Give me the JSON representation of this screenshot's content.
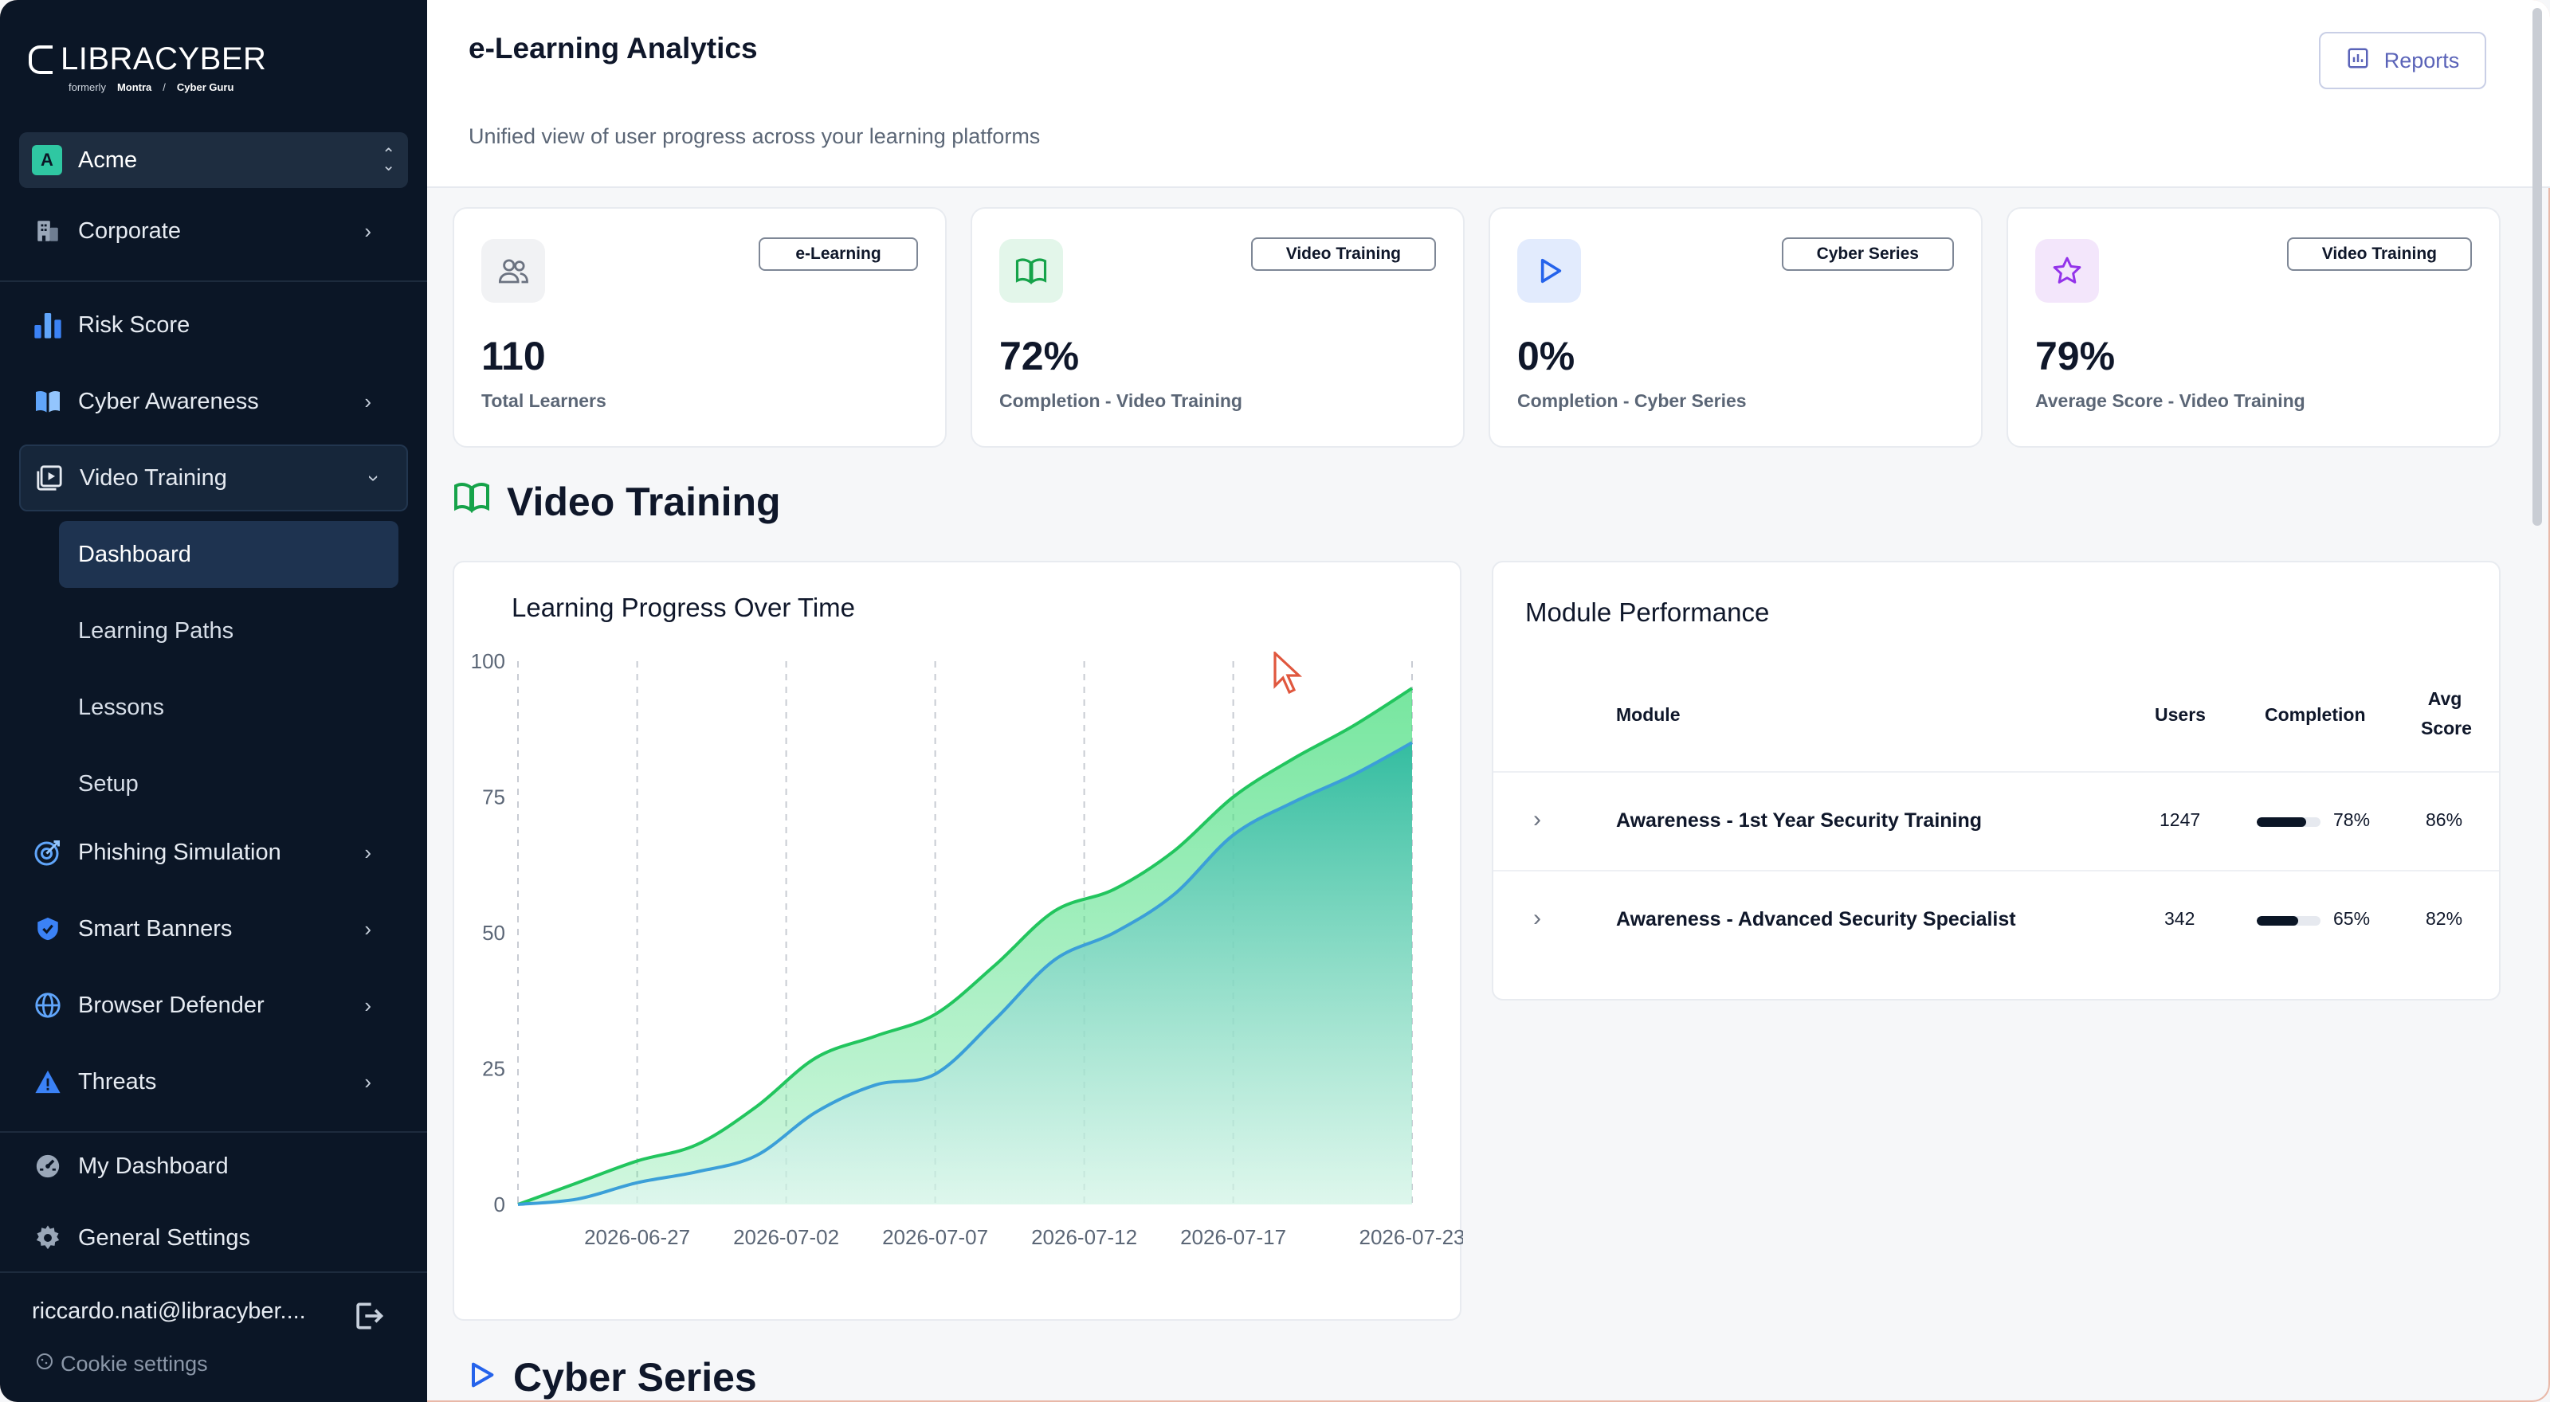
{
  "brand": {
    "name": "LIBRACYBER",
    "formerly": "formerly",
    "old_brand_1": "Montra",
    "separator": "/",
    "old_brand_2": "Cyber Guru"
  },
  "org": {
    "initial": "A",
    "name": "Acme"
  },
  "sidebar": {
    "items": [
      {
        "label": "Corporate",
        "icon": "building-icon"
      },
      {
        "label": "Risk Score",
        "icon": "bar-chart-icon"
      },
      {
        "label": "Cyber Awareness",
        "icon": "book-icon"
      },
      {
        "label": "Video Training",
        "icon": "video-icon"
      },
      {
        "label": "Phishing Simulation",
        "icon": "target-icon"
      },
      {
        "label": "Smart Banners",
        "icon": "shield-icon"
      },
      {
        "label": "Browser Defender",
        "icon": "globe-icon"
      },
      {
        "label": "Threats",
        "icon": "alert-icon"
      },
      {
        "label": "My Dashboard",
        "icon": "gauge-icon"
      },
      {
        "label": "General Settings",
        "icon": "gear-icon"
      }
    ],
    "sub_items": [
      {
        "label": "Dashboard"
      },
      {
        "label": "Learning Paths"
      },
      {
        "label": "Lessons"
      },
      {
        "label": "Setup"
      }
    ],
    "user_email": "riccardo.nati@libracyber....",
    "cookie_label": "Cookie settings"
  },
  "header": {
    "title": "e-Learning Analytics",
    "subtitle": "Unified view of user progress across your learning platforms",
    "reports_label": "Reports"
  },
  "kpis": [
    {
      "badge": "e-Learning",
      "value": "110",
      "label": "Total Learners",
      "icon": "users-icon",
      "icon_bg": "#f1f2f4",
      "icon_color": "#6b7280"
    },
    {
      "badge": "Video Training",
      "value": "72%",
      "label": "Completion - Video Training",
      "icon": "book-open-icon",
      "icon_bg": "#e3f6ea",
      "icon_color": "#16a34a"
    },
    {
      "badge": "Cyber Series",
      "value": "0%",
      "label": "Completion - Cyber Series",
      "icon": "play-icon",
      "icon_bg": "#e2ebfd",
      "icon_color": "#2563eb"
    },
    {
      "badge": "Video Training",
      "value": "79%",
      "label": "Average Score - Video Training",
      "icon": "star-icon",
      "icon_bg": "#f3e6fb",
      "icon_color": "#9333ea"
    }
  ],
  "sections": {
    "video_training": "Video Training",
    "cyber_series": "Cyber Series"
  },
  "chart_panel": {
    "title": "Learning Progress Over Time"
  },
  "chart_data": {
    "type": "area",
    "title": "Learning Progress Over Time",
    "x_tick_labels": [
      "2026-06-27",
      "2026-07-02",
      "2026-07-07",
      "2026-07-12",
      "2026-07-17",
      "2026-07-23"
    ],
    "y_ticks": [
      0,
      25,
      50,
      75,
      100
    ],
    "ylim": [
      0,
      100
    ],
    "grid": "vertical-dashed",
    "series": [
      {
        "color": "#22c55e",
        "x": [
          "2026-06-23",
          "2026-06-25",
          "2026-06-27",
          "2026-06-29",
          "2026-07-01",
          "2026-07-03",
          "2026-07-05",
          "2026-07-07",
          "2026-07-09",
          "2026-07-11",
          "2026-07-13",
          "2026-07-15",
          "2026-07-17",
          "2026-07-19",
          "2026-07-21",
          "2026-07-23"
        ],
        "values": [
          0,
          4,
          8,
          11,
          18,
          27,
          31,
          35,
          44,
          54,
          58,
          65,
          75,
          82,
          88,
          95
        ]
      },
      {
        "color": "#3b9fd8",
        "x": [
          "2026-06-23",
          "2026-06-25",
          "2026-06-27",
          "2026-06-29",
          "2026-07-01",
          "2026-07-03",
          "2026-07-05",
          "2026-07-07",
          "2026-07-09",
          "2026-07-11",
          "2026-07-13",
          "2026-07-15",
          "2026-07-17",
          "2026-07-19",
          "2026-07-21",
          "2026-07-23"
        ],
        "values": [
          0,
          1,
          4,
          6,
          9,
          17,
          22,
          24,
          34,
          45,
          50,
          57,
          68,
          74,
          79,
          85
        ]
      }
    ]
  },
  "module_panel": {
    "title": "Module Performance",
    "columns": [
      "Module",
      "Users",
      "Completion",
      "Avg",
      "Score"
    ],
    "rows": [
      {
        "module": "Awareness - 1st Year Security Training",
        "users": "1247",
        "completion": 78,
        "completion_label": "78%",
        "score": "86%"
      },
      {
        "module": "Awareness - Advanced Security Specialist",
        "users": "342",
        "completion": 65,
        "completion_label": "65%",
        "score": "82%"
      }
    ]
  }
}
